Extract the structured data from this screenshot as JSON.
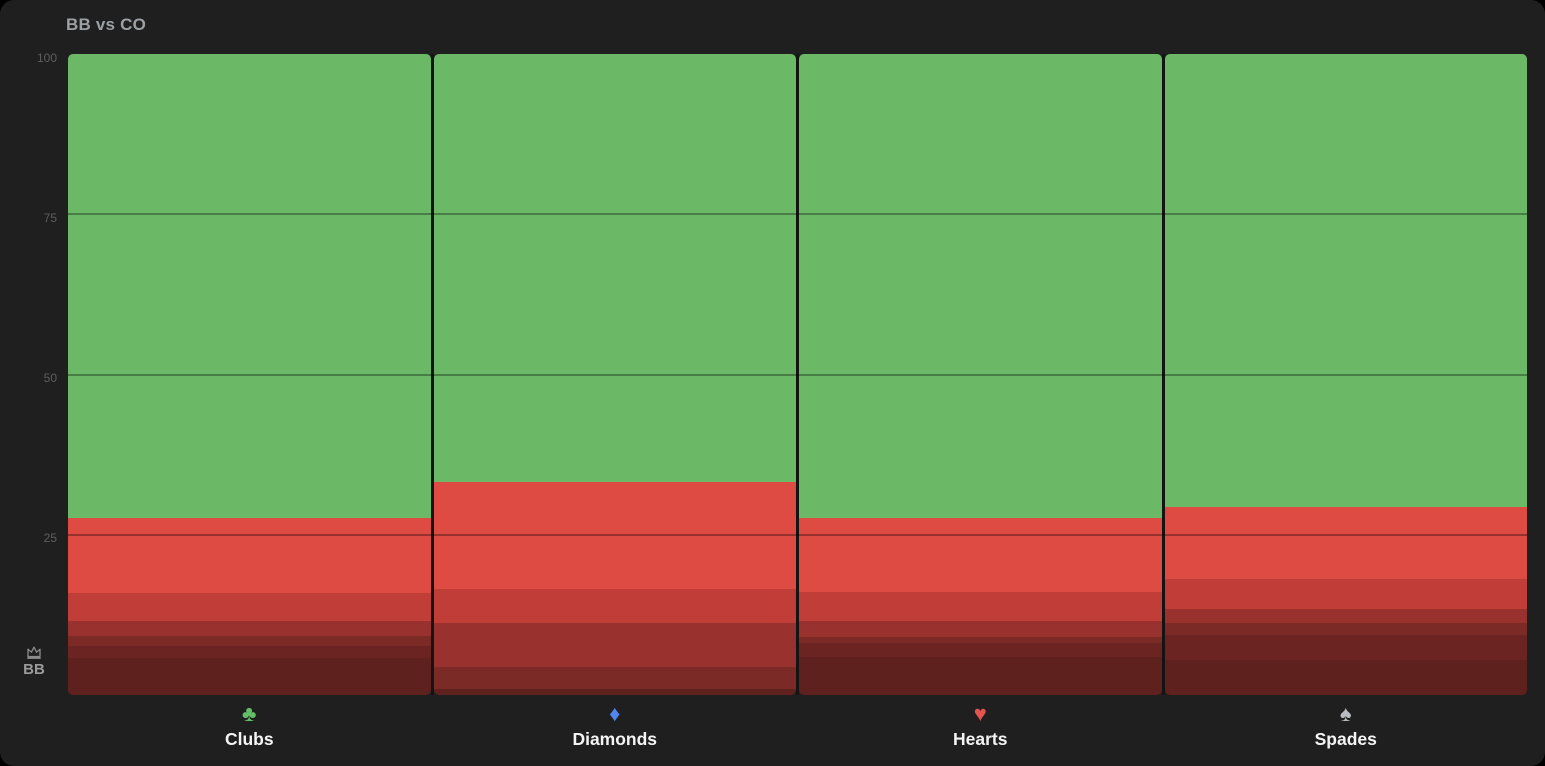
{
  "widget": {
    "title": "BB vs CO"
  },
  "player": {
    "label": "BB",
    "icon": "crown-icon",
    "icon_color": "#8c8c8c"
  },
  "y_axis": {
    "ticks": [
      {
        "label": "100",
        "value": 100
      },
      {
        "label": "75",
        "value": 75
      },
      {
        "label": "50",
        "value": 50
      },
      {
        "label": "25",
        "value": 25
      }
    ]
  },
  "palette": {
    "green": "#6bb966",
    "red1": "#de4b43",
    "red2": "#c13e38",
    "red3": "#99322e",
    "red4": "#7b2a26",
    "red5": "#6b2421",
    "red6": "#5e211e",
    "background": "#1f1f1f",
    "divider": "#141414",
    "title_text": "#9da0a3",
    "tick_text": "#5e5e5e",
    "x_label_text": "#f4f4f4"
  },
  "chart_data": {
    "type": "bar",
    "stacked": true,
    "orientation": "vertical",
    "title": "BB vs CO",
    "ylim": [
      0,
      100
    ],
    "gridlines": [
      75,
      50,
      25
    ],
    "grid_on": true,
    "legend_position": "none",
    "categories": [
      {
        "label": "Clubs",
        "icon": "club-icon",
        "glyph": "♣",
        "icon_color": "#63bf66"
      },
      {
        "label": "Diamonds",
        "icon": "diamond-icon",
        "glyph": "♦",
        "icon_color": "#5186ee"
      },
      {
        "label": "Hearts",
        "icon": "heart-icon",
        "glyph": "♥",
        "icon_color": "#e4534d"
      },
      {
        "label": "Spades",
        "icon": "spade-icon",
        "glyph": "♠",
        "icon_color": "#b9bcc0"
      }
    ],
    "series": [
      {
        "name": "green-top",
        "color_key": "green",
        "values": [
          72.4,
          66.7,
          72.4,
          70.6
        ]
      },
      {
        "name": "red-bright",
        "color_key": "red1",
        "values": [
          11.7,
          16.8,
          11.6,
          11.3
        ]
      },
      {
        "name": "red-medium",
        "color_key": "red2",
        "values": [
          4.3,
          5.3,
          4.4,
          4.7
        ]
      },
      {
        "name": "red-dark-1",
        "color_key": "red3",
        "values": [
          2.4,
          6.8,
          2.5,
          2.2
        ]
      },
      {
        "name": "red-dark-2",
        "color_key": "red4",
        "values": [
          1.6,
          3.4,
          1.0,
          1.8
        ]
      },
      {
        "name": "red-dark-3",
        "color_key": "red5",
        "values": [
          1.8,
          0,
          2.2,
          4.0
        ]
      },
      {
        "name": "red-darkest",
        "color_key": "red6",
        "values": [
          5.8,
          1.0,
          5.9,
          5.4
        ]
      }
    ]
  }
}
